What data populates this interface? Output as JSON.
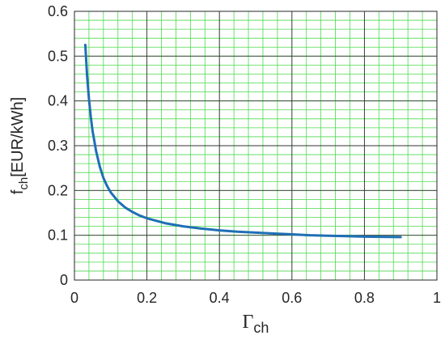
{
  "chart_data": {
    "type": "line",
    "title": "",
    "xlabel": {
      "main": "Γ",
      "sub": "ch"
    },
    "ylabel": {
      "main": "f",
      "sub": "ch",
      "rest": "[EUR/kWh]"
    },
    "xlim": [
      0,
      1
    ],
    "ylim": [
      0,
      0.6
    ],
    "x_ticks": [
      0,
      0.2,
      0.4,
      0.6,
      0.8,
      1
    ],
    "x_tick_labels": [
      "0",
      "0.2",
      "0.4",
      "0.6",
      "0.8",
      "1"
    ],
    "y_ticks": [
      0,
      0.1,
      0.2,
      0.3,
      0.4,
      0.5,
      0.6
    ],
    "y_tick_labels": [
      "0",
      "0.1",
      "0.2",
      "0.3",
      "0.4",
      "0.5",
      "0.6"
    ],
    "grid": true,
    "minor_grid": true,
    "colors": {
      "line": "#1f6fb5",
      "major_grid": "#333333",
      "minor_grid": "#4cd94c",
      "axes": "#262626"
    },
    "series": [
      {
        "x": [
          0.03,
          0.035,
          0.04,
          0.045,
          0.05,
          0.06,
          0.07,
          0.08,
          0.09,
          0.1,
          0.12,
          0.14,
          0.16,
          0.18,
          0.2,
          0.25,
          0.3,
          0.35,
          0.4,
          0.45,
          0.5,
          0.55,
          0.6,
          0.65,
          0.7,
          0.75,
          0.8,
          0.85,
          0.9
        ],
        "y": [
          0.525,
          0.455,
          0.405,
          0.365,
          0.333,
          0.287,
          0.253,
          0.228,
          0.21,
          0.196,
          0.176,
          0.162,
          0.152,
          0.144,
          0.138,
          0.127,
          0.12,
          0.115,
          0.111,
          0.108,
          0.106,
          0.104,
          0.102,
          0.1,
          0.099,
          0.098,
          0.097,
          0.0965,
          0.096
        ]
      }
    ]
  }
}
